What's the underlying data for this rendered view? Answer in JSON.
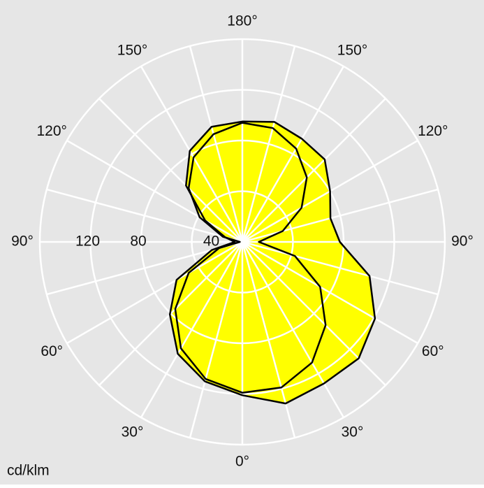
{
  "chart_data": {
    "type": "polar",
    "unit_label": "cd/klm",
    "theta": [
      0,
      15,
      30,
      45,
      60,
      75,
      90,
      105,
      120,
      135,
      150,
      165,
      180,
      195,
      210,
      225,
      240,
      255,
      270,
      285,
      300,
      315,
      330,
      345
    ],
    "series": [
      {
        "color": "#ffff00",
        "line_color": "#000000",
        "values": [
          121,
          132,
          129,
          130,
          121,
          104,
          77,
          72,
          80,
          92,
          94,
          98,
          95,
          94,
          83,
          63,
          34,
          14,
          6,
          25,
          60,
          81,
          102,
          114
        ]
      },
      {
        "color": "#ffff00",
        "line_color": "#000000",
        "values": [
          119,
          119,
          110,
          93,
          71,
          43,
          13,
          33,
          54,
          72,
          85,
          93,
          94,
          88,
          77,
          60,
          39,
          16,
          2,
          19,
          49,
          75,
          97,
          112
        ]
      }
    ],
    "rlim": [
      0,
      160
    ],
    "rticks": [
      40,
      80,
      120
    ],
    "angle_ticks": [
      {
        "value": 0,
        "label": "0°"
      },
      {
        "value": 30,
        "label": "30°"
      },
      {
        "value": 60,
        "label": "60°"
      },
      {
        "value": 90,
        "label": "90°"
      },
      {
        "value": 120,
        "label": "120°"
      },
      {
        "value": 150,
        "label": "150°"
      },
      {
        "value": 180,
        "label": "180°"
      }
    ],
    "spoke_step": 15,
    "grid_color": "#ffffff",
    "background": "#e6e6e6"
  }
}
